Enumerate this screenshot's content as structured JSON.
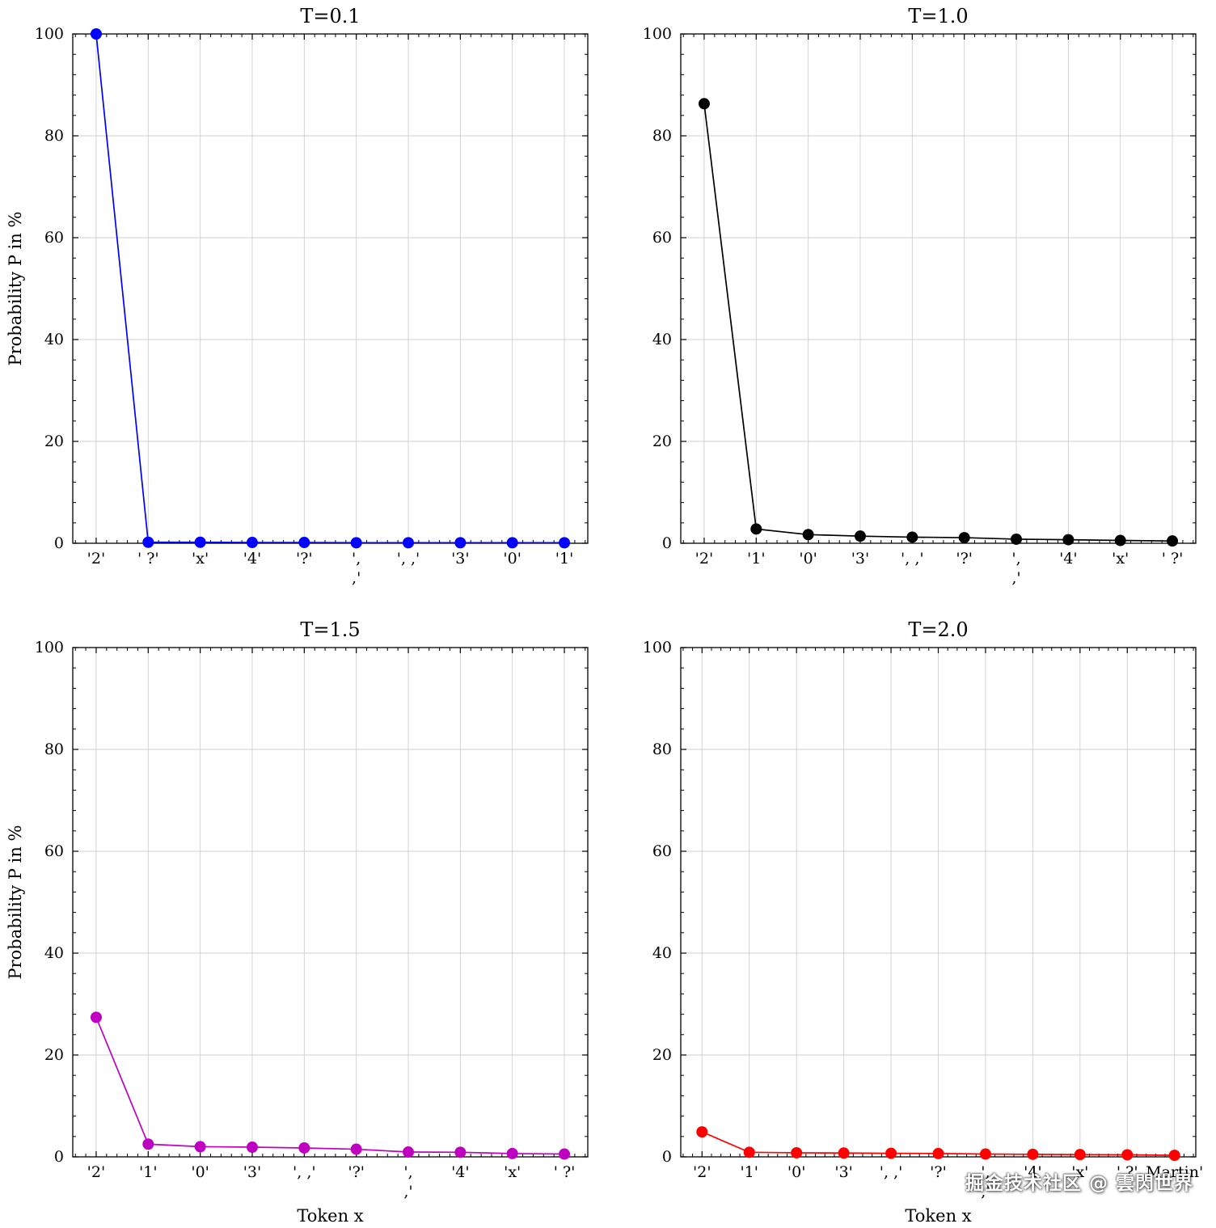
{
  "watermark": "掘金技术社区 @ 雲閃世界",
  "axis": {
    "ylabel": "Probability P in %",
    "xlabel": "Token x",
    "yticks": [
      0,
      20,
      40,
      60,
      80,
      100
    ],
    "grid_color": "#cfcfcf",
    "frame_color": "#000000"
  },
  "chart_data": [
    {
      "type": "line",
      "title": "T=0.1",
      "color": "#0000ff",
      "show_ylabel": true,
      "show_xlabel": false,
      "ylim": [
        0,
        100
      ],
      "categories": [
        "'2'",
        "' ?'",
        "'x'",
        "'4'",
        "'?'",
        "',\n,'",
        "', ,'",
        "'3'",
        "'0'",
        "'1'"
      ],
      "values": [
        100,
        0.2,
        0.2,
        0.15,
        0.15,
        0.1,
        0.1,
        0.1,
        0.1,
        0.1
      ]
    },
    {
      "type": "line",
      "title": "T=1.0",
      "color": "#000000",
      "show_ylabel": false,
      "show_xlabel": false,
      "ylim": [
        0,
        100
      ],
      "categories": [
        "'2'",
        "'1'",
        "'0'",
        "'3'",
        "', ,'",
        "'?'",
        "',\n,'",
        "'4'",
        "'x'",
        "' ?'"
      ],
      "values": [
        86.3,
        2.8,
        1.7,
        1.4,
        1.2,
        1.1,
        0.8,
        0.7,
        0.55,
        0.45
      ]
    },
    {
      "type": "line",
      "title": "T=1.5",
      "color": "#c000c0",
      "show_ylabel": true,
      "show_xlabel": true,
      "ylim": [
        0,
        100
      ],
      "categories": [
        "'2'",
        "'1'",
        "'0'",
        "'3'",
        "', ,'",
        "'?'",
        "',\n,'",
        "'4'",
        "'x'",
        "' ?'"
      ],
      "values": [
        27.4,
        2.5,
        2.0,
        1.9,
        1.75,
        1.5,
        0.95,
        0.9,
        0.65,
        0.55
      ]
    },
    {
      "type": "line",
      "title": "T=2.0",
      "color": "#ff0000",
      "show_ylabel": false,
      "show_xlabel": true,
      "ylim": [
        0,
        100
      ],
      "categories": [
        "'2'",
        "'1'",
        "'0'",
        "'3'",
        "', ,'",
        "'?'",
        "',\n,'",
        "'4'",
        "'x'",
        "' ?'",
        "Martin'"
      ],
      "values": [
        4.9,
        0.9,
        0.8,
        0.75,
        0.7,
        0.65,
        0.55,
        0.5,
        0.45,
        0.4,
        0.3
      ]
    }
  ]
}
